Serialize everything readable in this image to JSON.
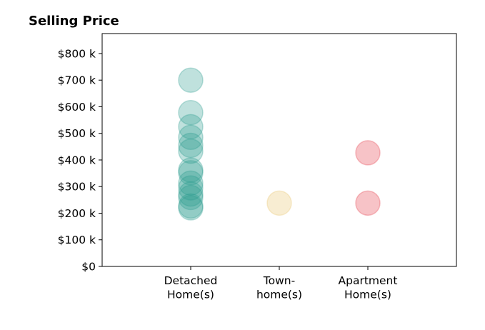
{
  "chart_data": {
    "type": "scatter",
    "title": "Selling Price",
    "xlabel": "",
    "ylabel": "",
    "categories": [
      {
        "lines": [
          "Detached",
          "Home(s)"
        ]
      },
      {
        "lines": [
          "Town-",
          "home(s)"
        ]
      },
      {
        "lines": [
          "Apartment",
          "Home(s)"
        ]
      }
    ],
    "yticks": [
      {
        "value": 0,
        "label": "$0"
      },
      {
        "value": 100,
        "label": "$100 k"
      },
      {
        "value": 200,
        "label": "$200 k"
      },
      {
        "value": 300,
        "label": "$300 k"
      },
      {
        "value": 400,
        "label": "$400 k"
      },
      {
        "value": 500,
        "label": "$500 k"
      },
      {
        "value": 600,
        "label": "$600 k"
      },
      {
        "value": 700,
        "label": "$700 k"
      },
      {
        "value": 800,
        "label": "$800 k"
      }
    ],
    "ylim": [
      0,
      875
    ],
    "xlim": [
      0,
      4
    ],
    "grid": false,
    "series": [
      {
        "category": 1,
        "color": "#2a9d8f",
        "values": [
          700,
          578,
          525,
          485,
          455,
          433,
          362,
          352,
          313,
          295,
          272,
          259,
          227,
          220
        ]
      },
      {
        "category": 2,
        "color": "#e9c46a",
        "values": [
          238
        ]
      },
      {
        "category": 3,
        "color": "#e63946",
        "values": [
          427,
          238
        ]
      }
    ]
  }
}
